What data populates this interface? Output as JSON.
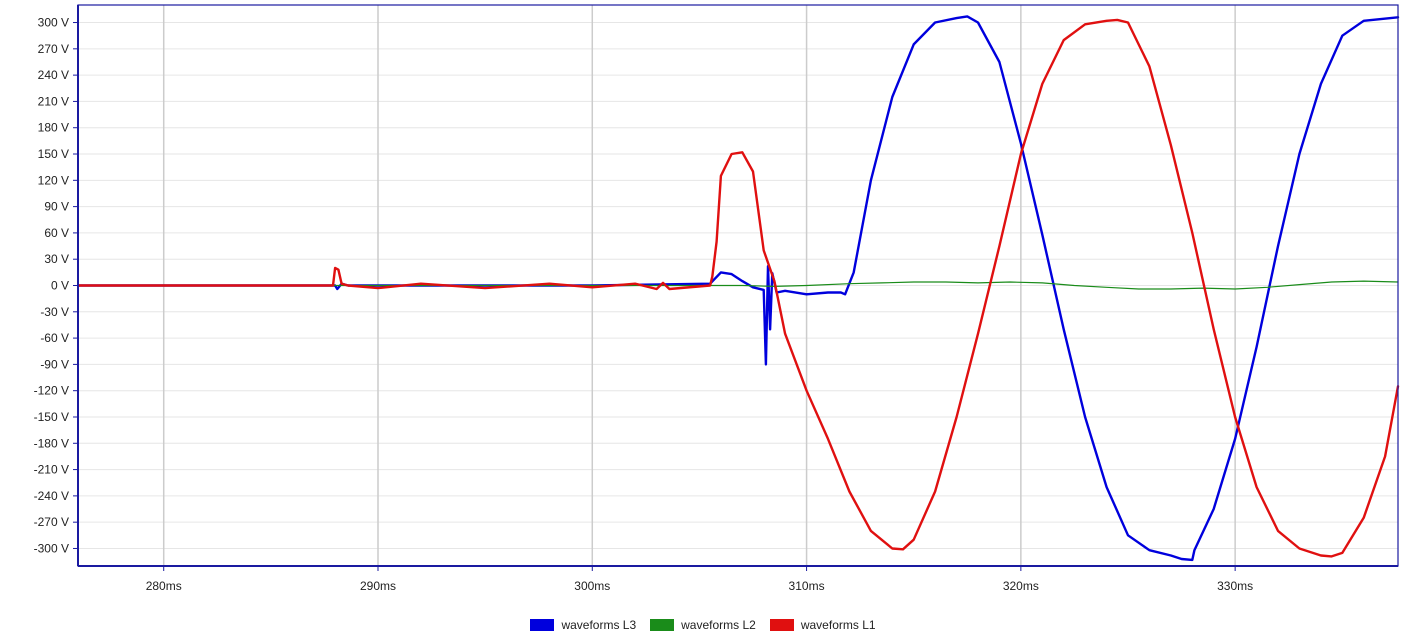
{
  "chart_data": {
    "type": "line",
    "title": "",
    "xlabel": "",
    "ylabel": "",
    "x_unit": "ms",
    "y_unit": "V",
    "xlim": [
      276,
      337.6
    ],
    "ylim": [
      -320,
      320
    ],
    "xticks": [
      280,
      290,
      300,
      310,
      320,
      330
    ],
    "xtick_labels": [
      "280ms",
      "290ms",
      "300ms",
      "310ms",
      "320ms",
      "330ms"
    ],
    "yticks": [
      300,
      270,
      240,
      210,
      180,
      150,
      120,
      90,
      60,
      30,
      0,
      -30,
      -60,
      -90,
      -120,
      -150,
      -180,
      -210,
      -240,
      -270,
      -300
    ],
    "ytick_labels": [
      "300 V",
      "270 V",
      "240 V",
      "210 V",
      "180 V",
      "150 V",
      "120 V",
      "90 V",
      "60 V",
      "30 V",
      "0 V",
      "-30 V",
      "-60 V",
      "-90 V",
      "-120 V",
      "-150 V",
      "-180 V",
      "-210 V",
      "-240 V",
      "-270 V",
      "-300 V"
    ],
    "grid": "vertical",
    "legend_position": "bottom-center",
    "series": [
      {
        "name": "waveforms L3",
        "color": "#0000dd",
        "x": [
          276,
          288,
          288.1,
          288.3,
          288.6,
          300,
          305.5,
          306,
          306.5,
          307,
          307.5,
          308,
          308.1,
          308.2,
          308.3,
          308.4,
          308.6,
          309,
          310,
          311,
          311.6,
          311.8,
          312.2,
          313,
          314,
          315,
          316,
          317,
          317.5,
          318,
          319,
          320,
          321,
          322,
          323,
          324,
          325,
          326,
          327,
          327.5,
          328,
          328.1,
          329,
          330,
          331,
          332,
          333,
          334,
          335,
          336,
          337.6
        ],
        "y": [
          0,
          0,
          -4,
          2,
          0,
          0,
          2,
          15,
          13,
          5,
          -2,
          -5,
          -90,
          22,
          -50,
          14,
          -8,
          -6,
          -10,
          -8,
          -8,
          -10,
          15,
          120,
          215,
          275,
          300,
          305,
          307,
          300,
          255,
          162,
          58,
          -50,
          -150,
          -230,
          -285,
          -302,
          -308,
          -312,
          -313,
          -302,
          -255,
          -175,
          -70,
          45,
          150,
          230,
          285,
          302,
          306
        ]
      },
      {
        "name": "waveforms L2",
        "color": "#1a8c1a",
        "x": [
          276,
          305,
          307,
          308.5,
          310,
          312,
          313.5,
          315,
          316.5,
          318,
          319.5,
          321,
          322.5,
          324,
          325.5,
          327,
          328.5,
          330,
          331.5,
          333,
          334.5,
          336,
          337.6
        ],
        "y": [
          0,
          0,
          0,
          -1,
          0,
          2,
          3,
          4,
          4,
          3,
          4,
          3,
          0,
          -2,
          -4,
          -4,
          -3,
          -4,
          -2,
          1,
          4,
          5,
          4
        ]
      },
      {
        "name": "waveforms L1",
        "color": "#e01010",
        "x": [
          276,
          287.9,
          288,
          288.15,
          288.3,
          288.6,
          290,
          292,
          295,
          298,
          300,
          302,
          303,
          303.3,
          303.6,
          305.5,
          305.6,
          305.8,
          306,
          306.5,
          307,
          307.5,
          308,
          308.5,
          309,
          310,
          311,
          312,
          313,
          314,
          314.5,
          315,
          316,
          317,
          318,
          319,
          320,
          321,
          322,
          323,
          324,
          324.5,
          325,
          326,
          327,
          328,
          329,
          330,
          331,
          332,
          333,
          334,
          334.5,
          335,
          336,
          337,
          337.6
        ],
        "y": [
          0,
          0,
          20,
          18,
          2,
          0,
          -3,
          2,
          -3,
          2,
          -2,
          2,
          -4,
          3,
          -4,
          0,
          10,
          50,
          125,
          150,
          152,
          130,
          40,
          5,
          -55,
          -120,
          -175,
          -235,
          -280,
          -300,
          -301,
          -290,
          -235,
          -150,
          -55,
          45,
          150,
          230,
          280,
          298,
          302,
          303,
          300,
          250,
          160,
          60,
          -50,
          -150,
          -230,
          -280,
          -300,
          -308,
          -309,
          -305,
          -265,
          -195,
          -115
        ]
      }
    ]
  },
  "legend": {
    "items": [
      {
        "label": "waveforms L3",
        "color": "#0000dd"
      },
      {
        "label": "waveforms L2",
        "color": "#1a8c1a"
      },
      {
        "label": "waveforms L1",
        "color": "#e01010"
      }
    ]
  },
  "style": {
    "axis_color": "#1a1aa0",
    "grid_color": "#cccccc",
    "hgrid_color": "#e6e6e6"
  }
}
